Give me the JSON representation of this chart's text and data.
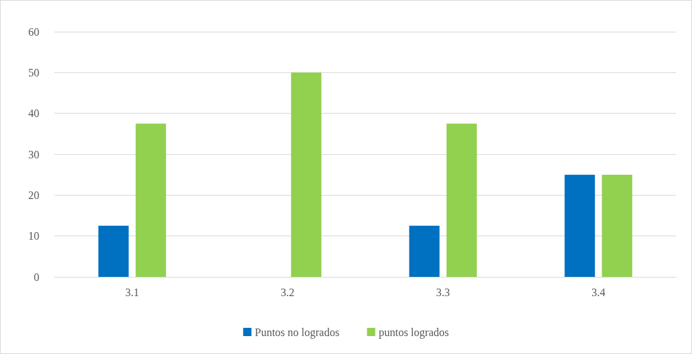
{
  "chart_data": {
    "type": "bar",
    "categories": [
      "3.1",
      "3.2",
      "3.3",
      "3.4"
    ],
    "series": [
      {
        "name": "Puntos no logrados",
        "color": "#0070c0",
        "values": [
          12.5,
          0,
          12.5,
          25
        ]
      },
      {
        "name": "puntos logrados",
        "color": "#92d050",
        "values": [
          37.5,
          50,
          37.5,
          25
        ]
      }
    ],
    "ylim": [
      0,
      60
    ],
    "yticks": [
      0,
      10,
      20,
      30,
      40,
      50,
      60
    ],
    "grid": "y",
    "legend": "bottom"
  }
}
